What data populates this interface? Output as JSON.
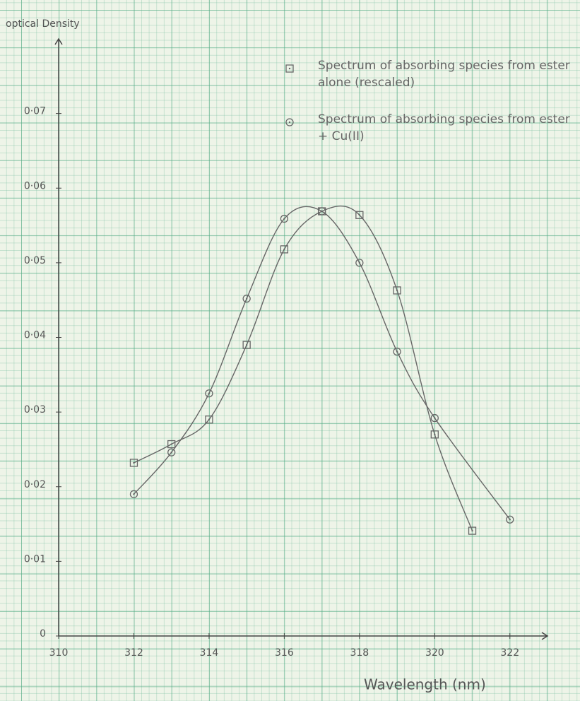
{
  "chart_data": {
    "type": "line",
    "y_label": "optical Density",
    "x_label": "Wavelength (nm)",
    "xlim": [
      310,
      323
    ],
    "ylim": [
      0,
      0.08
    ],
    "xticks": [
      310,
      312,
      314,
      316,
      318,
      320,
      322
    ],
    "yticks": [
      0,
      {
        "value": 0.01,
        "label": "0·01"
      },
      {
        "value": 0.02,
        "label": "0·02"
      },
      {
        "value": 0.03,
        "label": "0·03"
      },
      {
        "value": 0.04,
        "label": "0·04"
      },
      {
        "value": 0.05,
        "label": "0·05"
      },
      {
        "value": 0.06,
        "label": "0·06"
      },
      {
        "value": 0.07,
        "label": "0·07"
      }
    ],
    "series": [
      {
        "name": "Spectrum of absorbing species from ester alone (rescaled)",
        "color": "#666666",
        "marker": "square",
        "x": [
          312,
          313,
          314,
          315,
          316,
          317,
          318,
          319,
          320,
          321
        ],
        "values": [
          0.0232,
          0.0257,
          0.029,
          0.039,
          0.0518,
          0.0569,
          0.0564,
          0.0463,
          0.027,
          0.0141
        ]
      },
      {
        "name": "Spectrum of absorbing species from ester + Cu(II)",
        "color": "#666666",
        "marker": "circle",
        "x": [
          312,
          313,
          314,
          315,
          316,
          317,
          318,
          319,
          320,
          322
        ],
        "values": [
          0.019,
          0.0246,
          0.0325,
          0.0452,
          0.0559,
          0.0569,
          0.05,
          0.0381,
          0.0292,
          0.0156
        ]
      }
    ]
  }
}
